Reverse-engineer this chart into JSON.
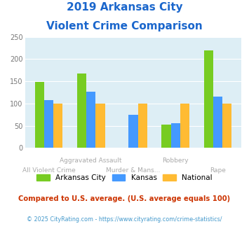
{
  "title_line1": "2019 Arkansas City",
  "title_line2": "Violent Crime Comparison",
  "categories_row1": [
    "",
    "Aggravated Assault",
    "",
    "Robbery",
    ""
  ],
  "categories_row2": [
    "All Violent Crime",
    "",
    "Murder & Mans...",
    "",
    "Rape"
  ],
  "series": {
    "Arkansas City": [
      148,
      168,
      0,
      52,
      220
    ],
    "Kansas": [
      108,
      126,
      74,
      56,
      115
    ],
    "National": [
      100,
      100,
      100,
      100,
      100
    ]
  },
  "bar_colors": {
    "Arkansas City": "#77cc22",
    "Kansas": "#4499ff",
    "National": "#ffbb33"
  },
  "ylim": [
    0,
    250
  ],
  "yticks": [
    0,
    50,
    100,
    150,
    200,
    250
  ],
  "plot_bg": "#ddeef5",
  "title_color": "#1a66cc",
  "label_row1_color": "#9999aa",
  "label_row2_color": "#9999aa",
  "footnote1": "Compared to U.S. average. (U.S. average equals 100)",
  "footnote2": "© 2025 CityRating.com - https://www.cityrating.com/crime-statistics/",
  "footnote1_color": "#cc3300",
  "footnote2_color": "#4499cc",
  "grid_color": "#ffffff",
  "bar_width": 0.22
}
